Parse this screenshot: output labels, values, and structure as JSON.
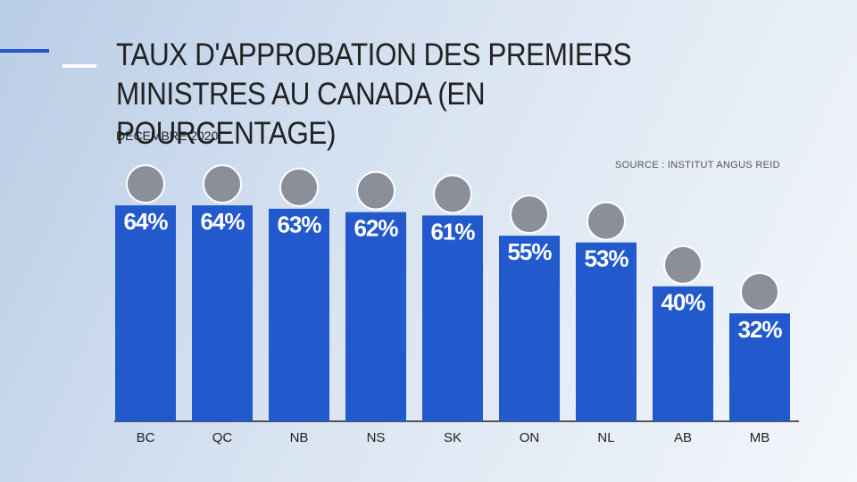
{
  "chart_data": {
    "type": "bar",
    "title": "TAUX D'APPROBATION DES PREMIERS MINISTRES AU CANADA (EN POURCENTAGE)",
    "subtitle": "DÉCEMBRE 2020",
    "source": "SOURCE : INSTITUT ANGUS REID",
    "categories": [
      "BC",
      "QC",
      "NB",
      "NS",
      "SK",
      "ON",
      "NL",
      "AB",
      "MB"
    ],
    "values": [
      64,
      64,
      63,
      62,
      61,
      55,
      53,
      40,
      32
    ],
    "value_labels": [
      "64%",
      "64%",
      "63%",
      "62%",
      "61%",
      "55%",
      "53%",
      "40%",
      "32%"
    ],
    "color": "#2259cc",
    "ylim": [
      0,
      100
    ]
  }
}
